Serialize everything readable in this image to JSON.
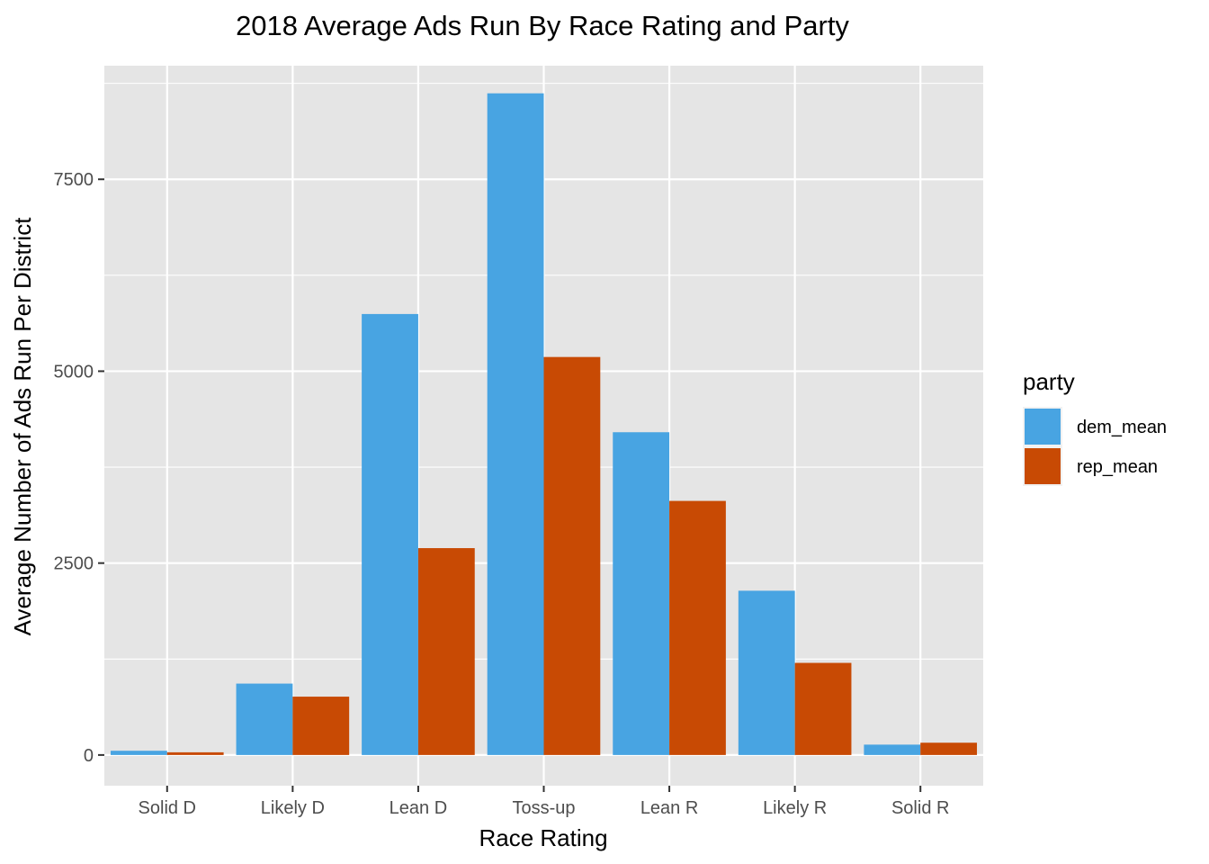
{
  "chart_data": {
    "type": "bar",
    "title": "2018 Average Ads Run By Race Rating and Party",
    "xlabel": "Race Rating",
    "ylabel": "Average Number of Ads Run Per District",
    "categories": [
      "Solid D",
      "Likely D",
      "Lean D",
      "Toss-up",
      "Lean R",
      "Likely R",
      "Solid R"
    ],
    "series": [
      {
        "name": "dem_mean",
        "color": "#48A4E2",
        "values": [
          55,
          930,
          5745,
          8620,
          4205,
          2140,
          135
        ]
      },
      {
        "name": "rep_mean",
        "color": "#C84A04",
        "values": [
          35,
          760,
          2695,
          5185,
          3310,
          1200,
          160
        ]
      }
    ],
    "yticks": [
      0,
      2500,
      5000,
      7500
    ],
    "ylim": [
      -400,
      8980
    ],
    "grid": true,
    "legend": {
      "title": "party",
      "position": "right"
    },
    "panel_background": "#E5E5E5",
    "grid_color": "#FFFFFF"
  }
}
